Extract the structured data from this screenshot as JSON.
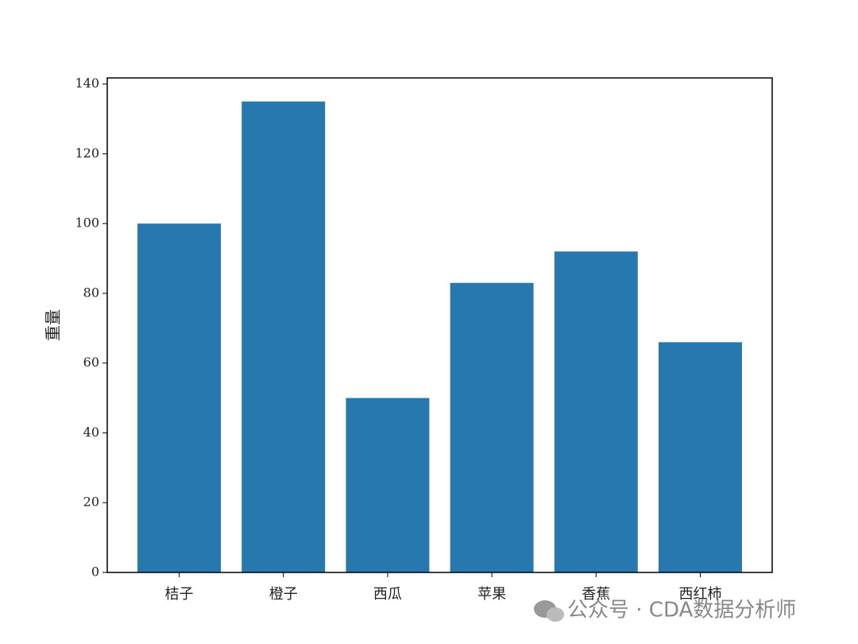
{
  "chart_data": {
    "type": "bar",
    "y_label": "重量",
    "categories": [
      "桔子",
      "橙子",
      "西瓜",
      "苹果",
      "香蕉",
      "西红柿"
    ],
    "values": [
      100,
      135,
      50,
      83,
      92,
      66
    ],
    "color": "#2878b0",
    "ylim": [
      0,
      141.75
    ],
    "yticks": [
      0,
      20,
      40,
      60,
      80,
      100,
      120,
      140
    ]
  },
  "watermark": "公众号 · CDA数据分析师"
}
